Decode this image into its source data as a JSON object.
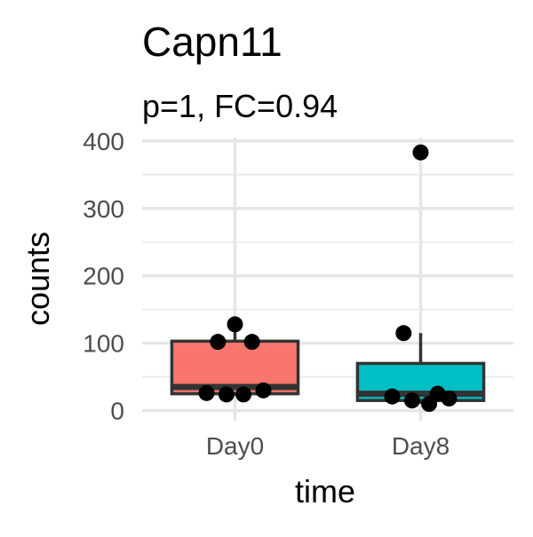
{
  "chart_data": {
    "type": "box",
    "title": "Capn11",
    "subtitle": "p=1, FC=0.94",
    "xlabel": "time",
    "ylabel": "counts",
    "categories": [
      "Day0",
      "Day8"
    ],
    "ylim": [
      -15,
      405
    ],
    "yticks": [
      0,
      100,
      200,
      300,
      400
    ],
    "grid": true,
    "boxes": [
      {
        "category": "Day0",
        "color": "#F8766D",
        "q1": 25,
        "median": 35,
        "q3": 103,
        "whisker_low": 22,
        "whisker_high": 128,
        "points": [
          128,
          102,
          102,
          30,
          26,
          24,
          24
        ]
      },
      {
        "category": "Day8",
        "color": "#00BFC4",
        "q1": 15,
        "median": 25,
        "q3": 70,
        "whisker_low": 10,
        "whisker_high": 115,
        "points": [
          383,
          115,
          25,
          18,
          21,
          15,
          10
        ]
      }
    ]
  }
}
